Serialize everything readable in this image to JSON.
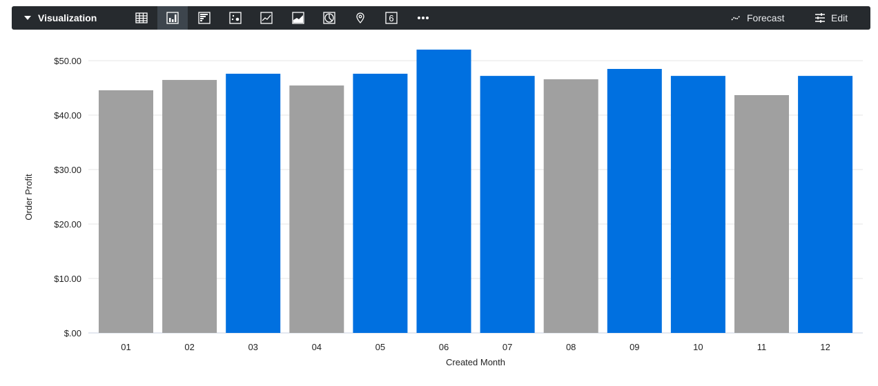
{
  "toolbar": {
    "title": "Visualization",
    "icons": [
      "table-icon",
      "bar-chart-icon",
      "horizontal-bar-icon",
      "scatter-icon",
      "line-chart-icon",
      "area-chart-icon",
      "pie-chart-icon",
      "map-pin-icon",
      "single-value-icon",
      "more-icon"
    ],
    "active": "bar-chart-icon",
    "single_value_glyph": "6",
    "forecast_label": "Forecast",
    "edit_label": "Edit"
  },
  "chart_data": {
    "type": "bar",
    "xlabel": "Created Month",
    "ylabel": "Order Profit",
    "categories": [
      "01",
      "02",
      "03",
      "04",
      "05",
      "06",
      "07",
      "08",
      "09",
      "10",
      "11",
      "12"
    ],
    "values": [
      44.56,
      46.46,
      47.6,
      45.44,
      47.6,
      52.03,
      47.2,
      46.58,
      48.48,
      47.2,
      43.67,
      47.2
    ],
    "highlighted": [
      false,
      false,
      true,
      false,
      true,
      true,
      true,
      false,
      true,
      true,
      false,
      true
    ],
    "colors": {
      "default": "#a0a0a0",
      "highlight": "#0070e0"
    },
    "ylim": [
      0,
      52
    ],
    "yticks": [
      0,
      10,
      20,
      30,
      40,
      50
    ],
    "ytick_labels": [
      "$.00",
      "$10.00",
      "$20.00",
      "$30.00",
      "$40.00",
      "$50.00"
    ],
    "grid": true
  }
}
